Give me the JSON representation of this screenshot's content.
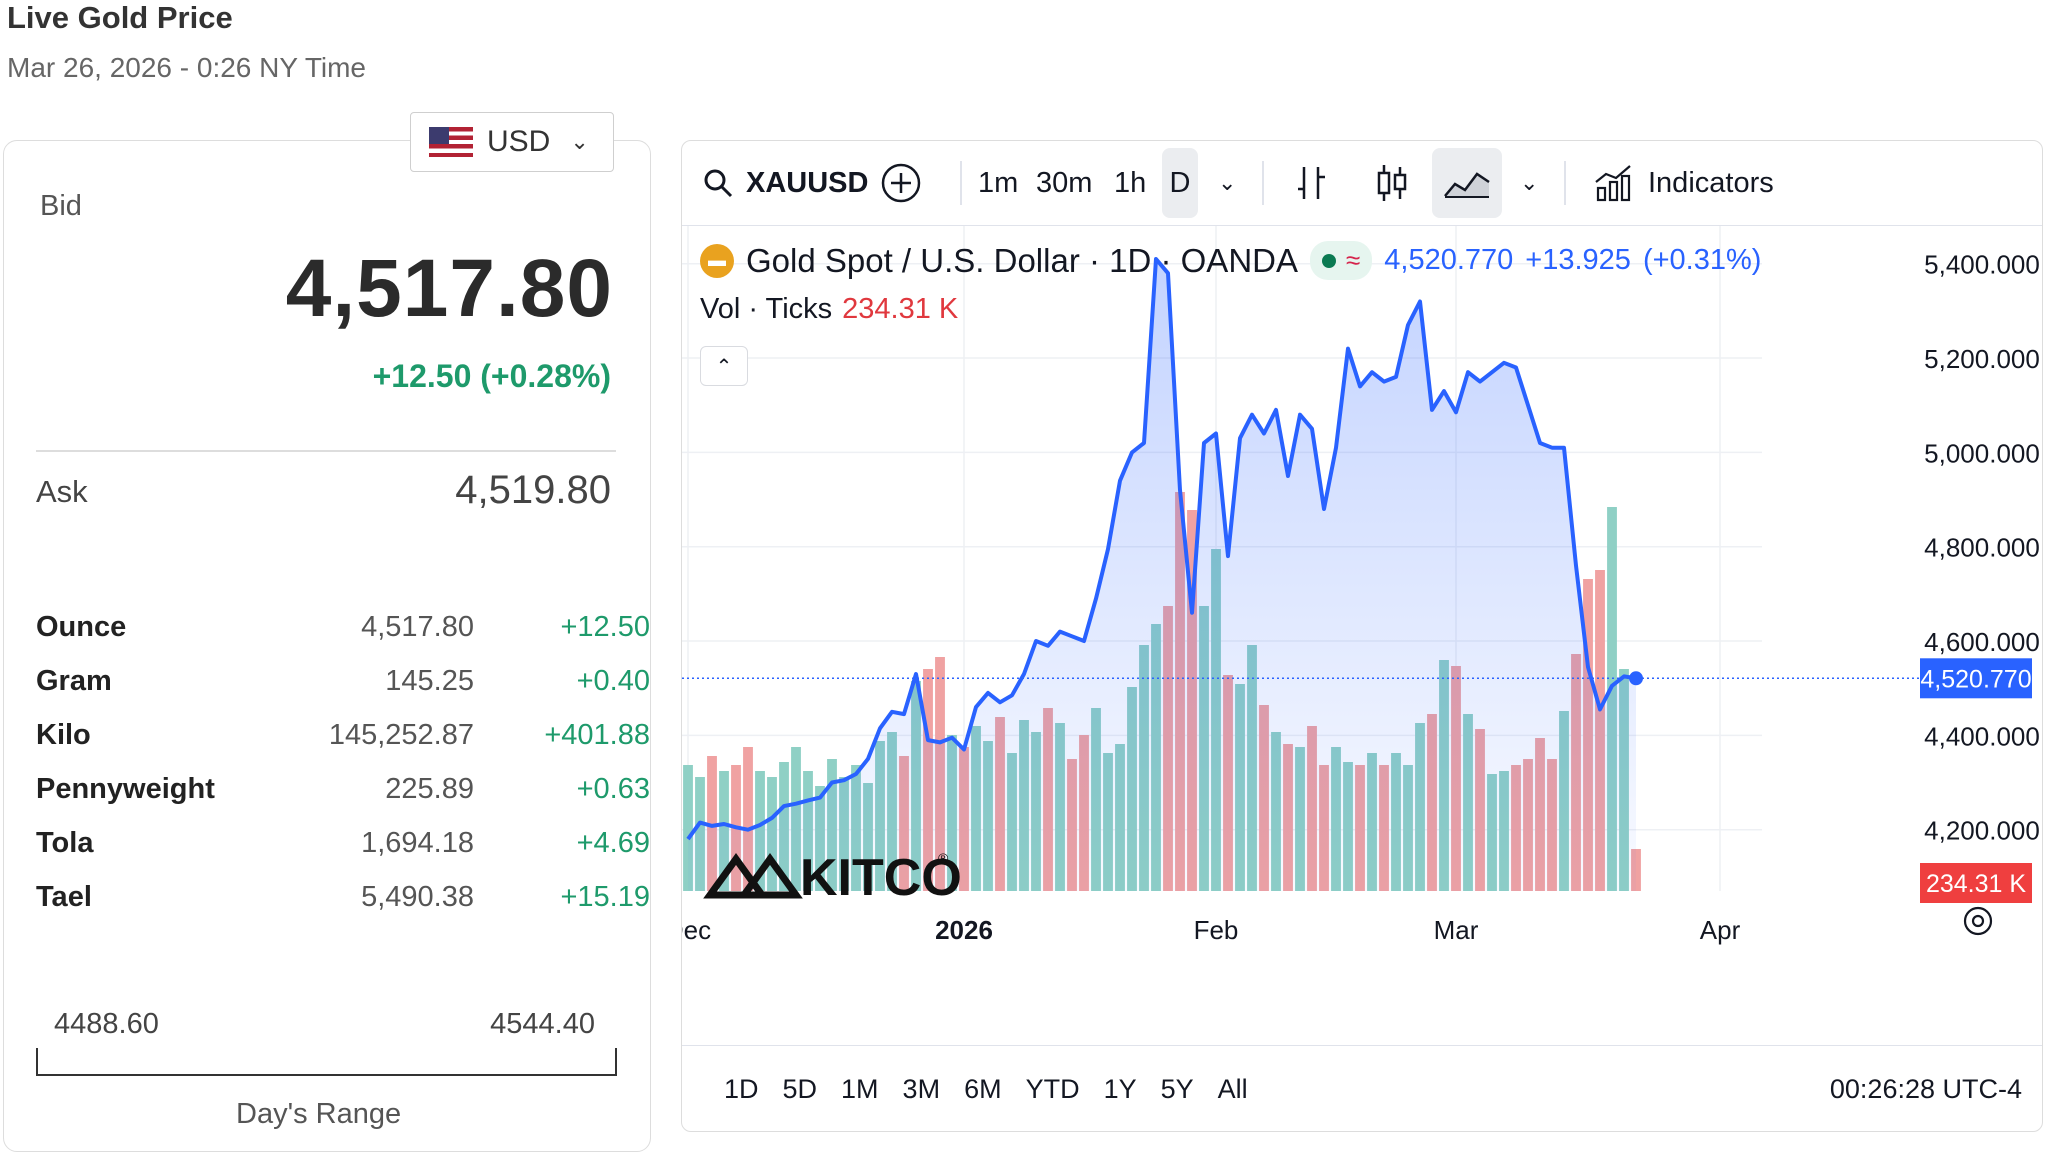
{
  "header": {
    "title": "Live Gold Price",
    "subtitle": "Mar 26, 2026 - 0:26 NY Time"
  },
  "currency": {
    "selected": "USD"
  },
  "quote": {
    "bid_label": "Bid",
    "bid": "4,517.80",
    "change": "+12.50 (+0.28%)",
    "ask_label": "Ask",
    "ask": "4,519.80"
  },
  "units": [
    {
      "unit": "Ounce",
      "price": "4,517.80",
      "change": "+12.50"
    },
    {
      "unit": "Gram",
      "price": "145.25",
      "change": "+0.40"
    },
    {
      "unit": "Kilo",
      "price": "145,252.87",
      "change": "+401.88"
    },
    {
      "unit": "Pennyweight",
      "price": "225.89",
      "change": "+0.63"
    },
    {
      "unit": "Tola",
      "price": "1,694.18",
      "change": "+4.69"
    },
    {
      "unit": "Tael",
      "price": "5,490.38",
      "change": "+15.19"
    }
  ],
  "day_range": {
    "low": "4488.60",
    "high": "4544.40",
    "label": "Day's Range"
  },
  "toolbar": {
    "symbol": "XAUUSD",
    "intervals": [
      "1m",
      "30m",
      "1h",
      "D"
    ],
    "indicators_label": "Indicators"
  },
  "legend": {
    "title": "Gold Spot / U.S. Dollar · 1D · OANDA",
    "last": "4,520.770",
    "change": "+13.925",
    "change_pct": "(+0.31%)",
    "vol_label": "Vol · Ticks",
    "vol_value": "234.31 K"
  },
  "ranges": [
    "1D",
    "5D",
    "1M",
    "3M",
    "6M",
    "YTD",
    "1Y",
    "5Y",
    "All"
  ],
  "clock": "00:26:28 UTC-4",
  "watermark": "KITCO",
  "colors": {
    "line": "#2962ff",
    "up": "#1e9a6b",
    "vol_up": "#8fd0c5",
    "vol_down": "#f0a2a2",
    "price_tag": "#2962ff",
    "vol_tag": "#ef3f3f"
  },
  "chart_data": {
    "type": "area",
    "y_ticks": [
      "4,200.000",
      "4,400.000",
      "4,600.000",
      "4,800.000",
      "5,000.000",
      "5,200.000",
      "5,400.000"
    ],
    "y_tick_values": [
      4200,
      4400,
      4600,
      4800,
      5000,
      5200,
      5400
    ],
    "ylim": [
      4070,
      5480
    ],
    "x_ticks": [
      {
        "label": "Dec",
        "index": 0,
        "bold": false
      },
      {
        "label": "2026",
        "index": 23,
        "bold": true
      },
      {
        "label": "Feb",
        "index": 44,
        "bold": false
      },
      {
        "label": "Mar",
        "index": 64,
        "bold": false
      },
      {
        "label": "Apr",
        "index": 86,
        "bold": false
      }
    ],
    "last_price_label": "4,520.770",
    "last_volume_label": "234.31 K",
    "close": [
      4180,
      4215,
      4208,
      4212,
      4205,
      4200,
      4210,
      4225,
      4250,
      4255,
      4262,
      4268,
      4300,
      4305,
      4318,
      4350,
      4415,
      4450,
      4445,
      4530,
      4390,
      4385,
      4395,
      4370,
      4460,
      4490,
      4470,
      4485,
      4530,
      4600,
      4590,
      4620,
      4610,
      4600,
      4690,
      4795,
      4940,
      5000,
      5020,
      5410,
      5380,
      4920,
      4660,
      5020,
      5040,
      4780,
      5030,
      5080,
      5040,
      5090,
      4950,
      5080,
      5050,
      4880,
      5010,
      5220,
      5140,
      5170,
      5150,
      5160,
      5270,
      5320,
      5090,
      5130,
      5085,
      5170,
      5150,
      5170,
      5190,
      5180,
      5100,
      5020,
      5010,
      5010,
      4760,
      4545,
      4455,
      4505,
      4525,
      4521
    ],
    "volume": [
      42,
      38,
      45,
      40,
      42,
      48,
      40,
      38,
      43,
      48,
      40,
      35,
      44,
      38,
      42,
      36,
      50,
      53,
      45,
      70,
      74,
      78,
      52,
      48,
      55,
      50,
      58,
      46,
      57,
      53,
      61,
      56,
      44,
      52,
      61,
      46,
      49,
      68,
      82,
      89,
      95,
      133,
      127,
      95,
      114,
      72,
      69,
      82,
      62,
      53,
      49,
      48,
      55,
      42,
      48,
      43,
      42,
      46,
      42,
      46,
      42,
      56,
      59,
      77,
      75,
      59,
      54,
      39,
      40,
      42,
      44,
      51,
      44,
      60,
      79,
      104,
      107,
      128,
      74,
      14
    ]
  }
}
